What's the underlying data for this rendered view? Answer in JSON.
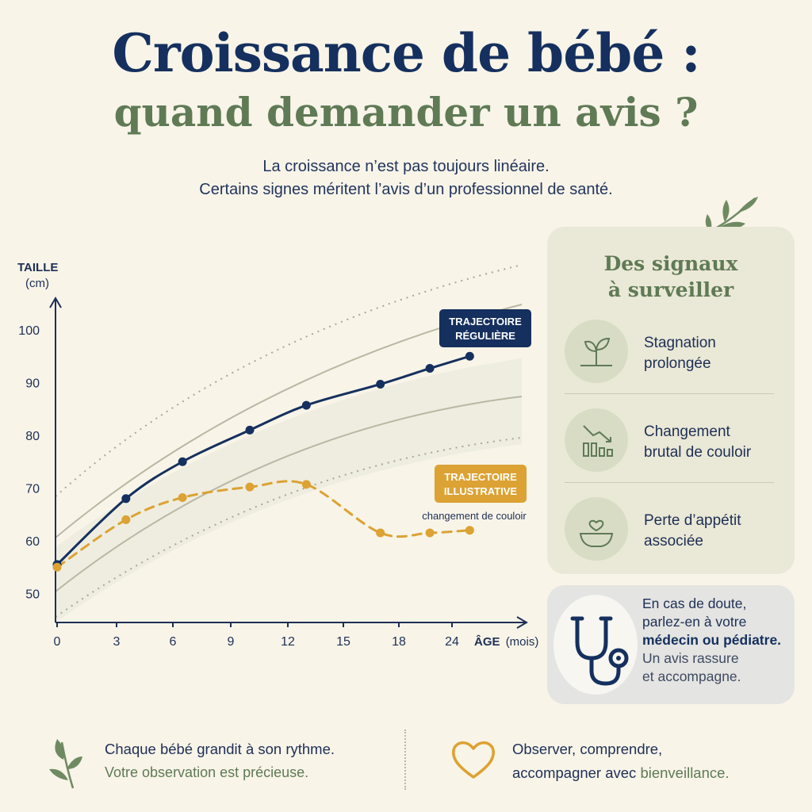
{
  "header": {
    "title_line1": "Croissance de bébé :",
    "title_line2": "quand demander un avis ?",
    "intro_line1": "La croissance n’est pas toujours linéaire.",
    "intro_line2": "Certains signes méritent l’avis d’un professionnel de santé."
  },
  "chart_data": {
    "type": "line",
    "ylabel": "TAILLE",
    "ylabel_unit": "(cm)",
    "xlabel": "ÂGE",
    "xlabel_unit": "(mois)",
    "x_ticks": [
      "0",
      "3",
      "6",
      "9",
      "12",
      "15",
      "18",
      "24"
    ],
    "y_ticks": [
      50,
      60,
      70,
      80,
      90,
      100
    ],
    "ylim": [
      45,
      105
    ],
    "grid": false,
    "series": [
      {
        "name": "TRAJECTOIRE RÉGULIÈRE",
        "style": "solid",
        "color": "#15305e",
        "x": [
          0,
          3.5,
          6.5,
          10,
          13,
          17,
          21.5,
          26
        ],
        "y": [
          55.5,
          68,
          75,
          81,
          85.7,
          89.7,
          92.7,
          95
        ]
      },
      {
        "name": "TRAJECTOIRE ILLUSTRATIVE",
        "style": "dashed",
        "color": "#dca233",
        "x": [
          0,
          3.5,
          6.5,
          10,
          13,
          17,
          21.5,
          26
        ],
        "y": [
          55,
          64,
          68.2,
          70.2,
          70.7,
          61.5,
          61.5,
          62
        ]
      }
    ],
    "annotation": "changement de couloir",
    "label_regular_1": "TRAJECTOIRE",
    "label_regular_2": "RÉGULIÈRE",
    "label_illustrative_1": "TRAJECTOIRE",
    "label_illustrative_2": "ILLUSTRATIVE"
  },
  "signals": {
    "title_line1": "Des signaux",
    "title_line2": "à surveiller",
    "items": [
      {
        "icon": "sprout-icon",
        "line1": "Stagnation",
        "line2": "prolongée"
      },
      {
        "icon": "decline-chart-icon",
        "line1": "Changement",
        "line2": "brutal de couloir"
      },
      {
        "icon": "bowl-heart-icon",
        "line1": "Perte d’appétit",
        "line2": "associée"
      }
    ]
  },
  "doctor": {
    "line1": "En cas de doute,",
    "line2": "parlez-en à votre",
    "line3": "médecin ou pédiatre.",
    "line4": "Un avis rassure",
    "line5": "et accompagne."
  },
  "footer": {
    "left_line1": "Chaque bébé grandit à son rythme.",
    "left_line2": "Votre observation est précieuse.",
    "right_line1": "Observer, comprendre,",
    "right_line2a": "accompagner avec ",
    "right_line2b": "bienveillance."
  },
  "colors": {
    "navy": "#15305e",
    "sage": "#5f7a55",
    "amber": "#dca233",
    "background": "#f8f4e8"
  }
}
